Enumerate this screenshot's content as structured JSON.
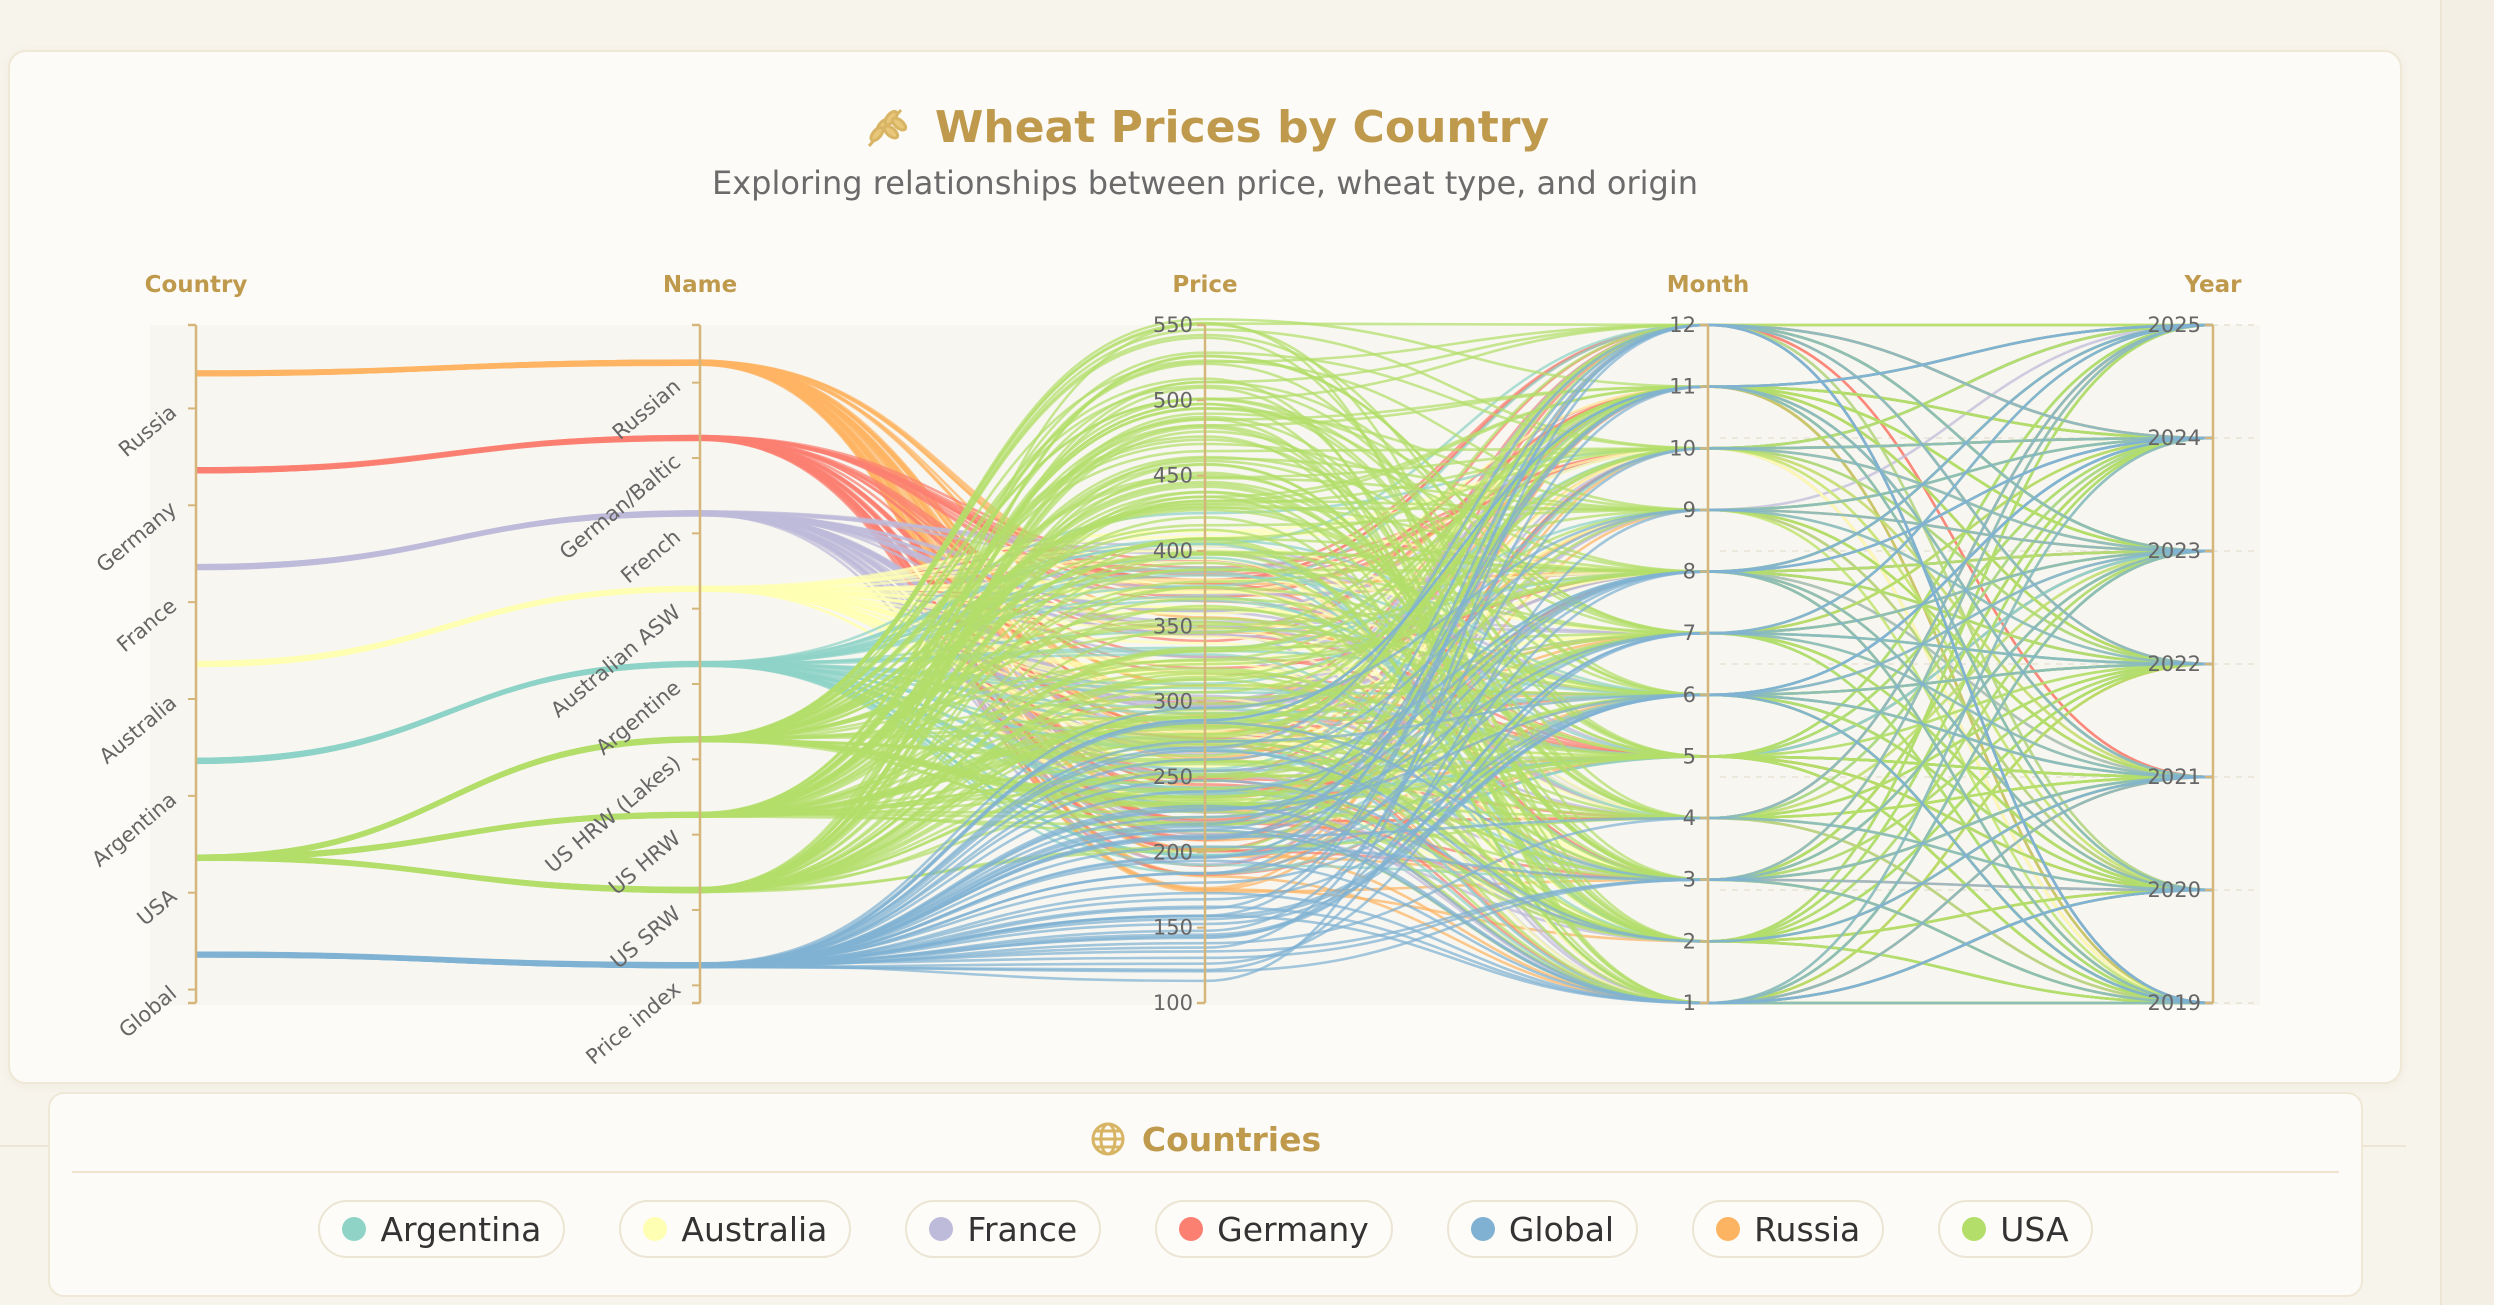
{
  "header": {
    "title": "Wheat Prices by Country",
    "subtitle": "Exploring relationships between price, wheat type, and origin",
    "icon": "wheat-icon"
  },
  "legend": {
    "title": "Countries",
    "icon": "globe-icon",
    "items": [
      {
        "label": "Argentina",
        "color": "#8fd3c7"
      },
      {
        "label": "Australia",
        "color": "#ffffb3"
      },
      {
        "label": "France",
        "color": "#bebada"
      },
      {
        "label": "Germany",
        "color": "#fb8072"
      },
      {
        "label": "Global",
        "color": "#80b1d3"
      },
      {
        "label": "Russia",
        "color": "#fdb462"
      },
      {
        "label": "USA",
        "color": "#b3de69"
      }
    ]
  },
  "chart_data": {
    "type": "parallel-coordinates",
    "axes": [
      {
        "name": "Country",
        "kind": "categorical",
        "ticks": [
          "Russia",
          "Germany",
          "France",
          "Australia",
          "Argentina",
          "USA",
          "Global"
        ]
      },
      {
        "name": "Name",
        "kind": "categorical",
        "ticks": [
          "Russian",
          "German/Baltic",
          "French",
          "Australian ASW",
          "Argentine",
          "US HRW (Lakes)",
          "US HRW",
          "US SRW",
          "Price index"
        ]
      },
      {
        "name": "Price",
        "kind": "numeric",
        "ticks": [
          "550",
          "500",
          "450",
          "400",
          "350",
          "300",
          "250",
          "200",
          "150",
          "100"
        ],
        "range": [
          100,
          550
        ]
      },
      {
        "name": "Month",
        "kind": "numeric",
        "ticks": [
          "12",
          "11",
          "10",
          "9",
          "8",
          "7",
          "6",
          "5",
          "4",
          "3",
          "2",
          "1"
        ],
        "range": [
          1,
          12
        ]
      },
      {
        "name": "Year",
        "kind": "numeric",
        "ticks": [
          "2025",
          "2024",
          "2023",
          "2022",
          "2021",
          "2020",
          "2019"
        ],
        "range": [
          2019,
          2025
        ]
      }
    ],
    "series": [
      {
        "country": "Russia",
        "names": [
          "Russian"
        ],
        "color": "#fdb462",
        "price_range": [
          170,
          380
        ]
      },
      {
        "country": "Germany",
        "names": [
          "German/Baltic"
        ],
        "color": "#fb8072",
        "price_range": [
          180,
          400
        ]
      },
      {
        "country": "France",
        "names": [
          "French"
        ],
        "color": "#bebada",
        "price_range": [
          190,
          410
        ]
      },
      {
        "country": "Australia",
        "names": [
          "Australian ASW"
        ],
        "color": "#ffffb3",
        "price_range": [
          220,
          420
        ]
      },
      {
        "country": "Argentina",
        "names": [
          "Argentine"
        ],
        "color": "#8fd3c7",
        "price_range": [
          180,
          440
        ]
      },
      {
        "country": "USA",
        "names": [
          "US HRW (Lakes)",
          "US HRW",
          "US SRW"
        ],
        "color": "#b3de69",
        "price_range": [
          200,
          560
        ]
      },
      {
        "country": "Global",
        "names": [
          "Price index"
        ],
        "color": "#80b1d3",
        "price_range": [
          110,
          300
        ]
      }
    ],
    "years": [
      2019,
      2020,
      2021,
      2022,
      2023,
      2024,
      2025
    ],
    "months": [
      1,
      2,
      3,
      4,
      5,
      6,
      7,
      8,
      9,
      10,
      11,
      12
    ]
  }
}
